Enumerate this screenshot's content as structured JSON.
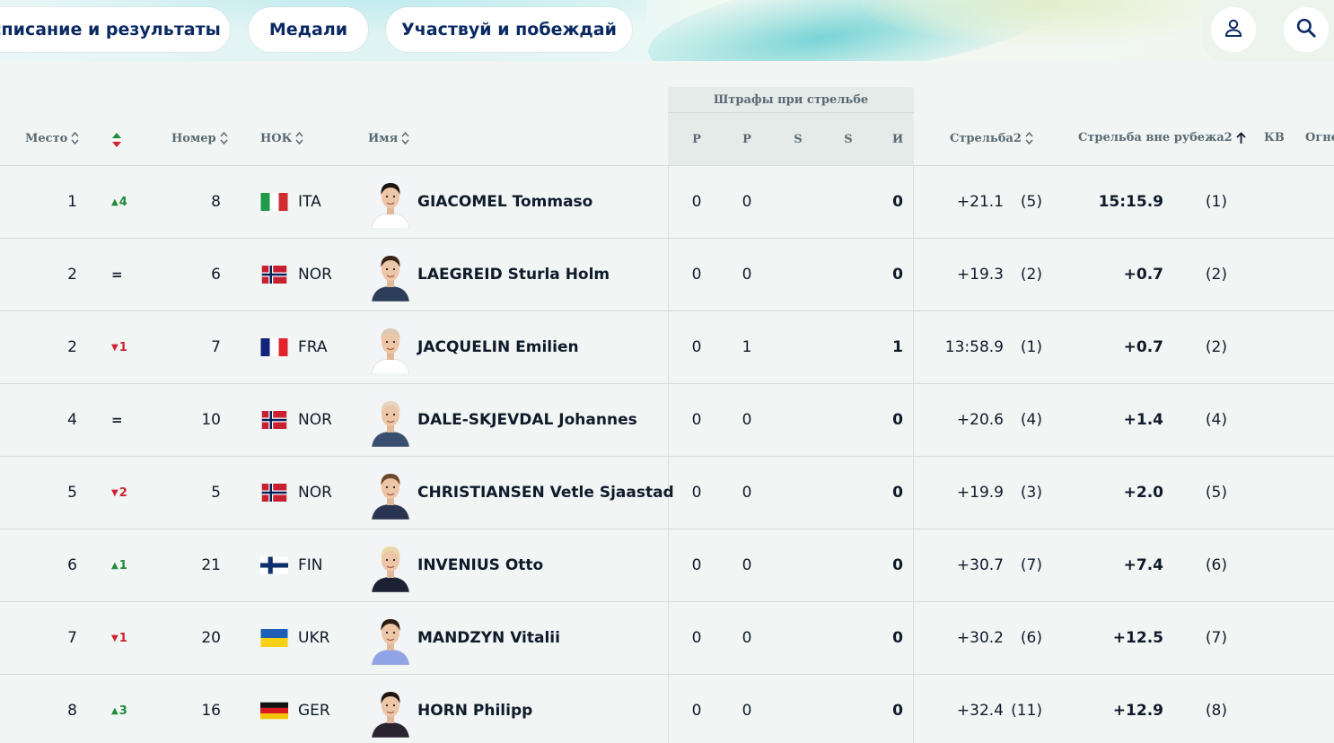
{
  "nav": {
    "tabs": [
      {
        "label": "списание и результаты"
      },
      {
        "label": "Медали"
      },
      {
        "label": "Участвуй и побеждай"
      }
    ],
    "icons": [
      "user-icon",
      "search-icon"
    ],
    "colors": {
      "nav_text": "#0b2a63",
      "up": "#1f8a3a",
      "down": "#d0202f"
    }
  },
  "table": {
    "headers": {
      "place": "Место",
      "bib": "Номер",
      "noc": "НОК",
      "name": "Имя",
      "penalty_group": "Штрафы при стрельбе",
      "pen_cols": [
        "P",
        "P",
        "S",
        "S",
        "И"
      ],
      "shooting": "Стрельба2",
      "non_shooting": "Стрельба вне рубежа2",
      "kv": "КВ",
      "fire": "Огне"
    },
    "rows": [
      {
        "rank": "1",
        "change": "4",
        "change_dir": "up",
        "bib": "8",
        "noc": "ITA",
        "name": "GIACOMEL Tommaso",
        "p1": "0",
        "p2": "0",
        "total": "0",
        "shooting": "+21.1",
        "shooting_rank": "(5)",
        "non_shooting": "15:15.9",
        "non_shooting_rank": "(1)"
      },
      {
        "rank": "2",
        "change": "=",
        "change_dir": "eq",
        "bib": "6",
        "noc": "NOR",
        "name": "LAEGREID Sturla Holm",
        "p1": "0",
        "p2": "0",
        "total": "0",
        "shooting": "+19.3",
        "shooting_rank": "(2)",
        "non_shooting": "+0.7",
        "non_shooting_rank": "(2)"
      },
      {
        "rank": "2",
        "change": "1",
        "change_dir": "down",
        "bib": "7",
        "noc": "FRA",
        "name": "JACQUELIN Emilien",
        "p1": "0",
        "p2": "1",
        "total": "1",
        "shooting": "13:58.9",
        "shooting_rank": "(1)",
        "non_shooting": "+0.7",
        "non_shooting_rank": "(2)"
      },
      {
        "rank": "4",
        "change": "=",
        "change_dir": "eq",
        "bib": "10",
        "noc": "NOR",
        "name": "DALE-SKJEVDAL Johannes",
        "p1": "0",
        "p2": "0",
        "total": "0",
        "shooting": "+20.6",
        "shooting_rank": "(4)",
        "non_shooting": "+1.4",
        "non_shooting_rank": "(4)"
      },
      {
        "rank": "5",
        "change": "2",
        "change_dir": "down",
        "bib": "5",
        "noc": "NOR",
        "name": "CHRISTIANSEN Vetle Sjaastad",
        "p1": "0",
        "p2": "0",
        "total": "0",
        "shooting": "+19.9",
        "shooting_rank": "(3)",
        "non_shooting": "+2.0",
        "non_shooting_rank": "(5)"
      },
      {
        "rank": "6",
        "change": "1",
        "change_dir": "up",
        "bib": "21",
        "noc": "FIN",
        "name": "INVENIUS Otto",
        "p1": "0",
        "p2": "0",
        "total": "0",
        "shooting": "+30.7",
        "shooting_rank": "(7)",
        "non_shooting": "+7.4",
        "non_shooting_rank": "(6)"
      },
      {
        "rank": "7",
        "change": "1",
        "change_dir": "down",
        "bib": "20",
        "noc": "UKR",
        "name": "MANDZYN Vitalii",
        "p1": "0",
        "p2": "0",
        "total": "0",
        "shooting": "+30.2",
        "shooting_rank": "(6)",
        "non_shooting": "+12.5",
        "non_shooting_rank": "(7)"
      },
      {
        "rank": "8",
        "change": "3",
        "change_dir": "up",
        "bib": "16",
        "noc": "GER",
        "name": "HORN Philipp",
        "p1": "0",
        "p2": "0",
        "total": "0",
        "shooting": "+32.4",
        "shooting_rank": "(11)",
        "non_shooting": "+12.9",
        "non_shooting_rank": "(8)"
      }
    ]
  }
}
